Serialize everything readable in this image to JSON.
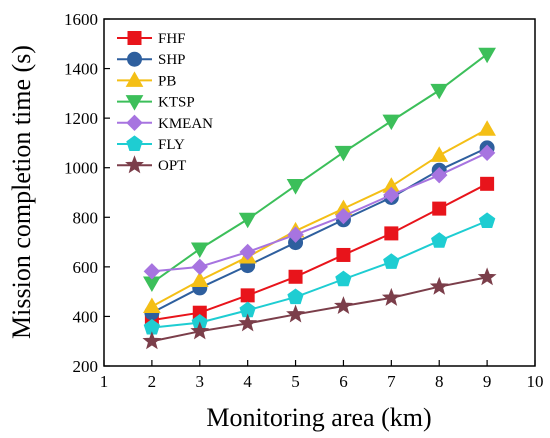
{
  "chart_data": {
    "type": "line",
    "title": "",
    "xlabel": "Monitoring area (km)",
    "ylabel": "Mission completion time (s)",
    "xlim": [
      1,
      10
    ],
    "ylim": [
      200,
      1600
    ],
    "xticks": [
      1,
      2,
      3,
      4,
      5,
      6,
      7,
      8,
      9,
      10
    ],
    "yticks": [
      200,
      400,
      600,
      800,
      1000,
      1200,
      1400,
      1600
    ],
    "grid": false,
    "legend_position": "top-left",
    "x": [
      2,
      3,
      4,
      5,
      6,
      7,
      8,
      9
    ],
    "series": [
      {
        "name": "FHF",
        "color": "#e8141b",
        "marker": "square",
        "values": [
          385,
          415,
          485,
          560,
          648,
          735,
          835,
          935
        ]
      },
      {
        "name": "SHP",
        "color": "#2e5f9e",
        "marker": "circle",
        "values": [
          415,
          515,
          605,
          698,
          790,
          880,
          990,
          1080
        ]
      },
      {
        "name": "PB",
        "color": "#f4bf16",
        "marker": "triangle-up",
        "values": [
          440,
          545,
          640,
          745,
          835,
          925,
          1050,
          1155
        ]
      },
      {
        "name": "KTSP",
        "color": "#3cbf5a",
        "marker": "triangle-down",
        "values": [
          535,
          672,
          792,
          928,
          1062,
          1188,
          1312,
          1458
        ]
      },
      {
        "name": "KMEAN",
        "color": "#a774e0",
        "marker": "diamond",
        "values": [
          582,
          600,
          660,
          730,
          805,
          890,
          970,
          1060
        ]
      },
      {
        "name": "FLY",
        "color": "#1ecdd2",
        "marker": "pentagon",
        "values": [
          355,
          375,
          425,
          478,
          550,
          620,
          705,
          785
        ]
      },
      {
        "name": "OPT",
        "color": "#7b3e4a",
        "marker": "star",
        "values": [
          300,
          340,
          372,
          408,
          442,
          475,
          520,
          558
        ]
      }
    ]
  }
}
